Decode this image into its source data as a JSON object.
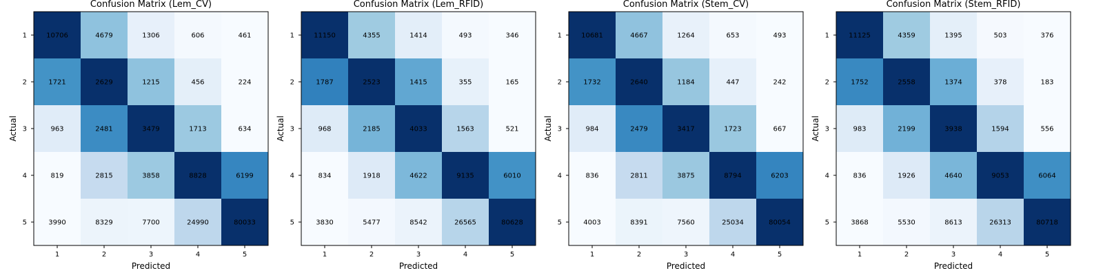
{
  "chart_data": [
    {
      "type": "heatmap",
      "title": "Confusion Matrix (Lem_CV)",
      "xlabel": "Predicted",
      "ylabel": "Actual",
      "x_ticks": [
        "1",
        "2",
        "3",
        "4",
        "5"
      ],
      "y_ticks": [
        "1",
        "2",
        "3",
        "4",
        "5"
      ],
      "colormap": "Blues",
      "values": [
        [
          10706,
          4679,
          1306,
          606,
          461
        ],
        [
          1721,
          2629,
          1215,
          456,
          224
        ],
        [
          963,
          2481,
          3479,
          1713,
          634
        ],
        [
          819,
          2815,
          3858,
          8828,
          6199
        ],
        [
          3990,
          8329,
          7700,
          24990,
          80033
        ]
      ]
    },
    {
      "type": "heatmap",
      "title": "Confusion Matrix (Lem_RFID)",
      "xlabel": "Predicted",
      "ylabel": "Actual",
      "x_ticks": [
        "1",
        "2",
        "3",
        "4",
        "5"
      ],
      "y_ticks": [
        "1",
        "2",
        "3",
        "4",
        "5"
      ],
      "colormap": "Blues",
      "values": [
        [
          11150,
          4355,
          1414,
          493,
          346
        ],
        [
          1787,
          2523,
          1415,
          355,
          165
        ],
        [
          968,
          2185,
          4033,
          1563,
          521
        ],
        [
          834,
          1918,
          4622,
          9135,
          6010
        ],
        [
          3830,
          5477,
          8542,
          26565,
          80628
        ]
      ]
    },
    {
      "type": "heatmap",
      "title": "Confusion Matrix (Stem_CV)",
      "xlabel": "Predicted",
      "ylabel": "Actual",
      "x_ticks": [
        "1",
        "2",
        "3",
        "4",
        "5"
      ],
      "y_ticks": [
        "1",
        "2",
        "3",
        "4",
        "5"
      ],
      "colormap": "Blues",
      "values": [
        [
          10681,
          4667,
          1264,
          653,
          493
        ],
        [
          1732,
          2640,
          1184,
          447,
          242
        ],
        [
          984,
          2479,
          3417,
          1723,
          667
        ],
        [
          836,
          2811,
          3875,
          8794,
          6203
        ],
        [
          4003,
          8391,
          7560,
          25034,
          80054
        ]
      ]
    },
    {
      "type": "heatmap",
      "title": "Confusion Matrix (Stem_RFID)",
      "xlabel": "Predicted",
      "ylabel": "Actual",
      "x_ticks": [
        "1",
        "2",
        "3",
        "4",
        "5"
      ],
      "y_ticks": [
        "1",
        "2",
        "3",
        "4",
        "5"
      ],
      "colormap": "Blues",
      "values": [
        [
          11125,
          4359,
          1395,
          503,
          376
        ],
        [
          1752,
          2558,
          1374,
          378,
          183
        ],
        [
          983,
          2199,
          3938,
          1594,
          556
        ],
        [
          836,
          1926,
          4640,
          9053,
          6064
        ],
        [
          3868,
          5530,
          8613,
          26313,
          80718
        ]
      ]
    }
  ]
}
